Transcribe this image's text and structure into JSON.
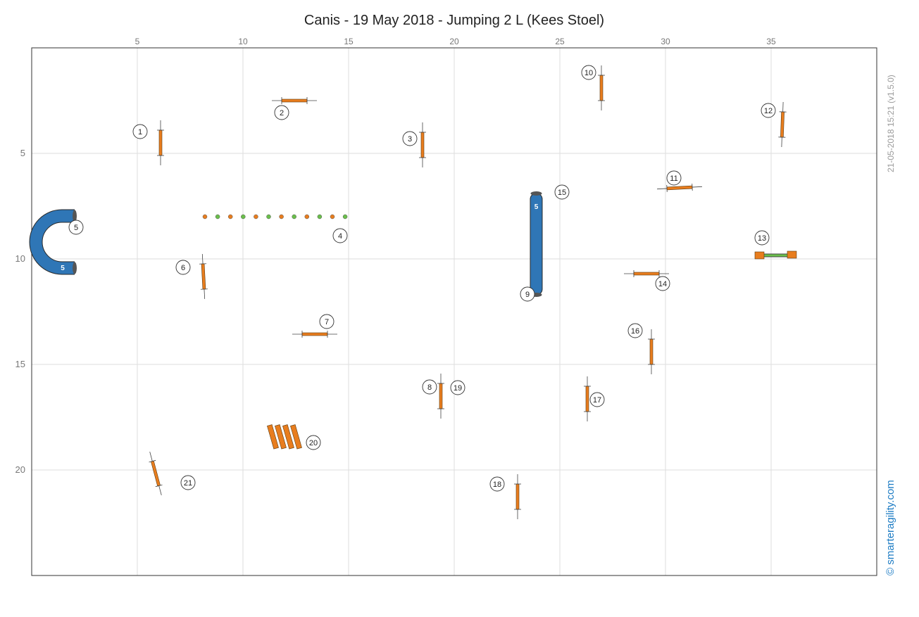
{
  "title": "Canis - 19 May 2018 - Jumping 2 L (Kees Stoel)",
  "stamp": "21-05-2018 15:21  (v1.5.0)",
  "brand": "© smarteragility.com",
  "colors": {
    "bar": "#e87d1e",
    "tunnel": "#2f76b6",
    "grid": "#dddddd",
    "weave_a": "#e87d1e",
    "weave_b": "#6abf4b"
  },
  "axes": {
    "x_ticks": [
      "5",
      "10",
      "15",
      "20",
      "25",
      "30",
      "35"
    ],
    "y_ticks": [
      "5",
      "10",
      "15",
      "20"
    ],
    "x_range": [
      0,
      40
    ],
    "y_range": [
      0,
      25
    ]
  },
  "tunnels": [
    {
      "label": "5",
      "type": "curved"
    },
    {
      "label": "5",
      "type": "straight"
    }
  ],
  "obstacles": [
    {
      "n": "1",
      "type": "jump"
    },
    {
      "n": "2",
      "type": "jump"
    },
    {
      "n": "3",
      "type": "jump"
    },
    {
      "n": "4",
      "type": "weave"
    },
    {
      "n": "5",
      "type": "tunnel"
    },
    {
      "n": "6",
      "type": "jump"
    },
    {
      "n": "7",
      "type": "jump"
    },
    {
      "n": "8",
      "type": "jump"
    },
    {
      "n": "9",
      "type": "tunnel"
    },
    {
      "n": "10",
      "type": "jump"
    },
    {
      "n": "11",
      "type": "jump"
    },
    {
      "n": "12",
      "type": "jump"
    },
    {
      "n": "13",
      "type": "tyre"
    },
    {
      "n": "14",
      "type": "jump"
    },
    {
      "n": "15",
      "type": "tunnel"
    },
    {
      "n": "16",
      "type": "jump"
    },
    {
      "n": "17",
      "type": "jump"
    },
    {
      "n": "18",
      "type": "jump"
    },
    {
      "n": "19",
      "type": "jump"
    },
    {
      "n": "20",
      "type": "long-jump"
    },
    {
      "n": "21",
      "type": "jump"
    }
  ]
}
